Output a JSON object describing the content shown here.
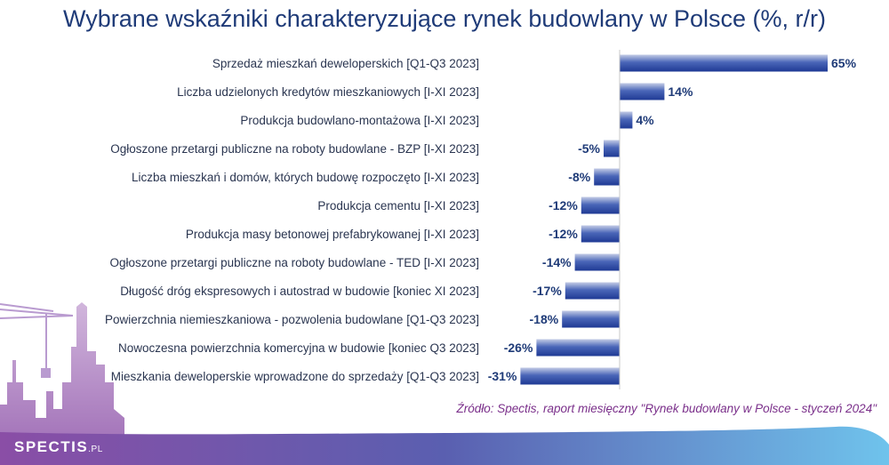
{
  "chart_data": {
    "type": "bar",
    "orientation": "horizontal",
    "title": "Wybrane wskaźniki charakteryzujące rynek budowlany w Polsce (%, r/r)",
    "categories": [
      "Sprzedaż mieszkań deweloperskich [Q1-Q3 2023]",
      "Liczba udzielonych kredytów mieszkaniowych [I-XI 2023]",
      "Produkcja budowlano-montażowa [I-XI 2023]",
      "Ogłoszone przetargi publiczne na roboty budowlane - BZP [I-XI 2023]",
      "Liczba mieszkań i domów, których budowę rozpoczęto [I-XI 2023]",
      "Produkcja cementu [I-XI 2023]",
      "Produkcja masy betonowej prefabrykowanej [I-XI 2023]",
      "Ogłoszone przetargi publiczne na roboty budowlane - TED [I-XI 2023]",
      "Długość dróg ekspresowych i autostrad w budowie [koniec XI 2023]",
      "Powierzchnia niemieszkaniowa - pozwolenia budowlane [Q1-Q3 2023]",
      "Nowoczesna powierzchnia komercyjna w budowie [koniec Q3 2023]",
      "Mieszkania deweloperskie wprowadzone do sprzedaży [Q1-Q3 2023]"
    ],
    "values": [
      65,
      14,
      4,
      -5,
      -8,
      -12,
      -12,
      -14,
      -17,
      -18,
      -26,
      -31
    ],
    "data_labels": [
      "65%",
      "14%",
      "4%",
      "-5%",
      "-8%",
      "-12%",
      "-12%",
      "-14%",
      "-17%",
      "-18%",
      "-26%",
      "-31%"
    ],
    "xlim": [
      -31,
      65
    ],
    "grid": false,
    "legend": "none",
    "bar_color": "#2a4aa5"
  },
  "source": "Źródło: Spectis, raport miesięczny \"Rynek budowlany w Polsce - styczeń 2024\"",
  "logo": {
    "name": "SPECTIS",
    "tld": ".PL"
  }
}
